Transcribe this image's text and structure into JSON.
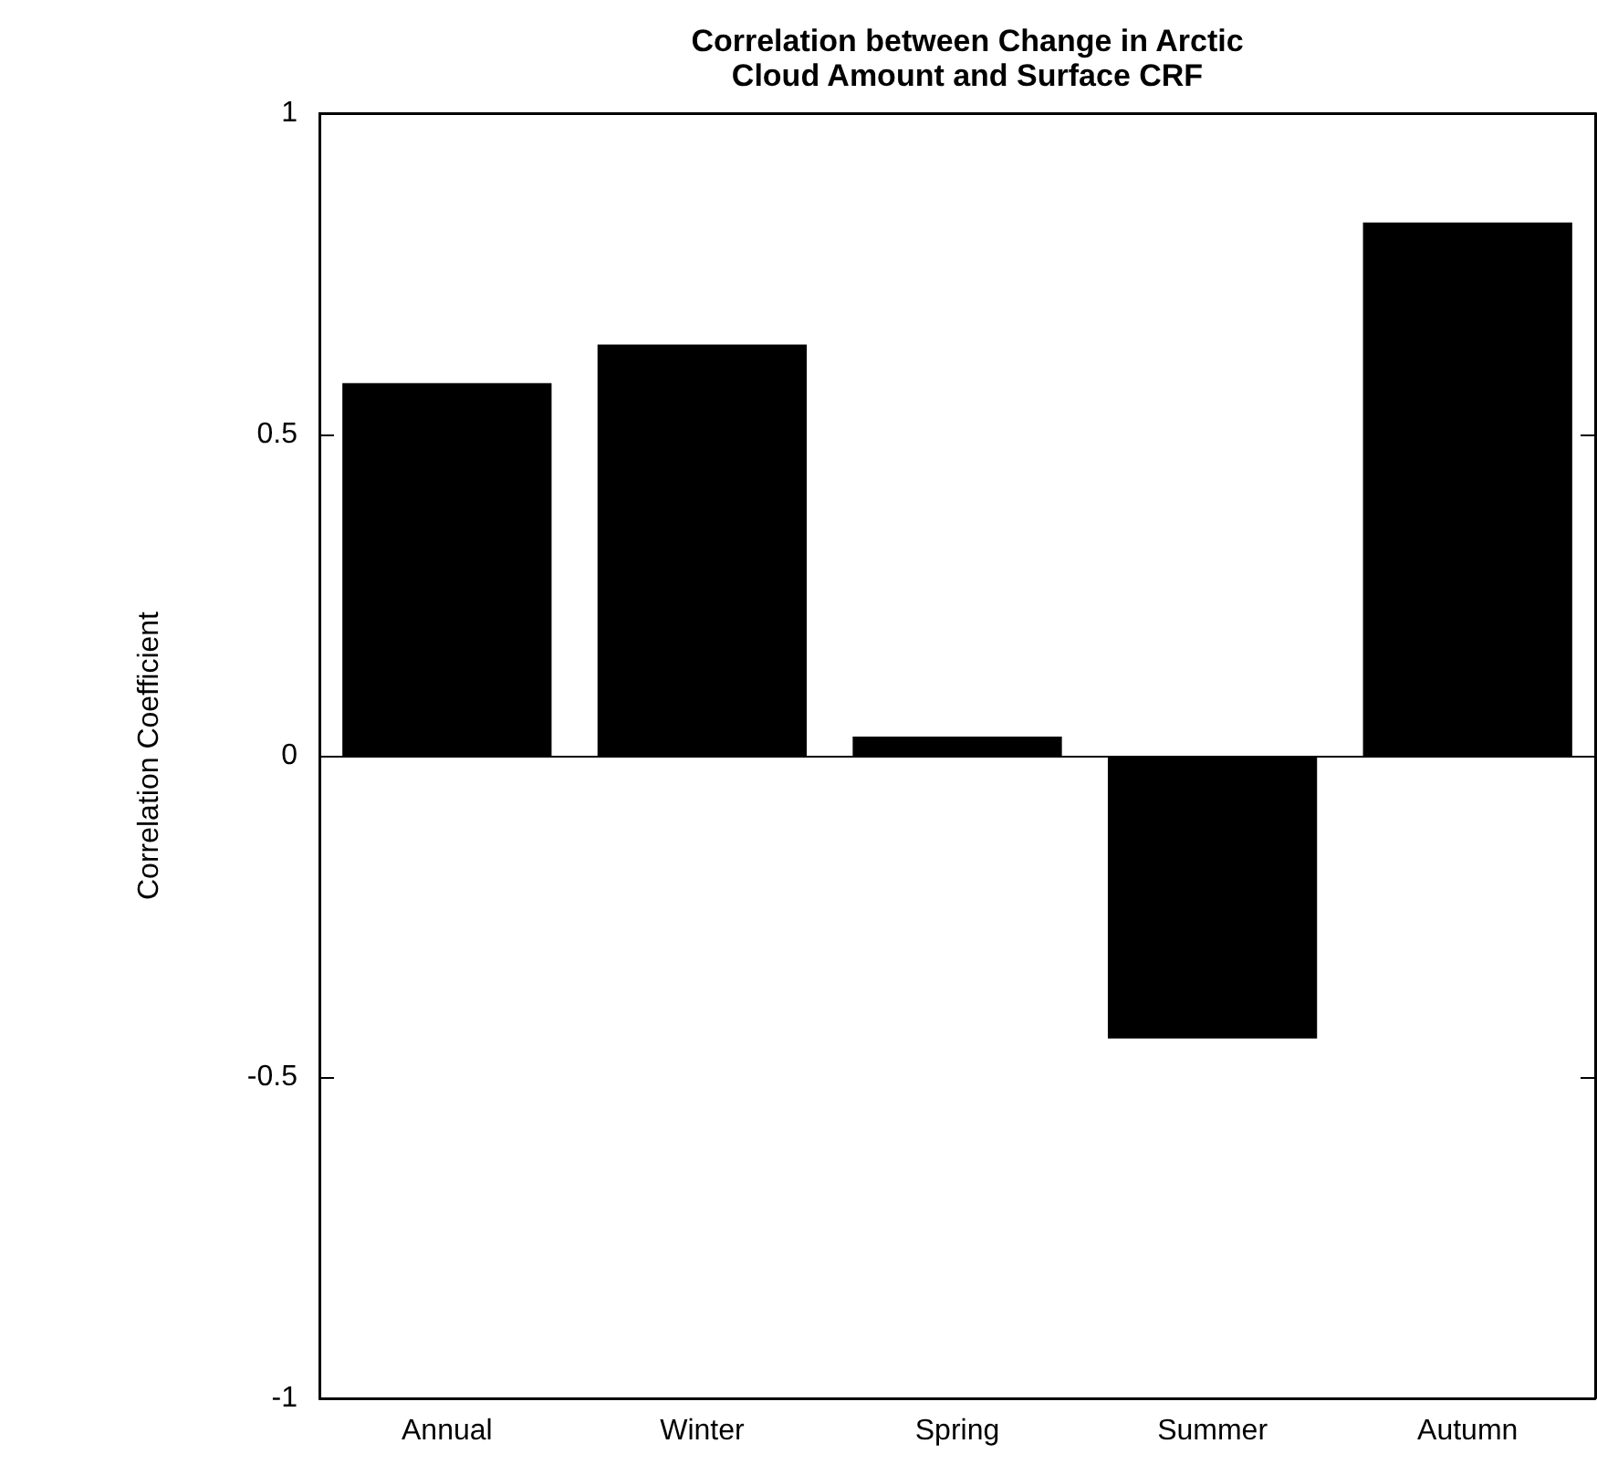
{
  "chart_data": {
    "type": "bar",
    "title": "Correlation between Change in Arctic\nCloud Amount and Surface CRF",
    "ylabel": "Correlation Coefficient",
    "categories": [
      "Annual",
      "Winter",
      "Spring",
      "Summer",
      "Autumn"
    ],
    "values": [
      0.58,
      0.64,
      0.03,
      -0.44,
      0.83
    ],
    "color": "#000000",
    "ylim": [
      -1,
      1
    ],
    "yticks": [
      -1,
      -0.5,
      0,
      0.5,
      1
    ]
  }
}
